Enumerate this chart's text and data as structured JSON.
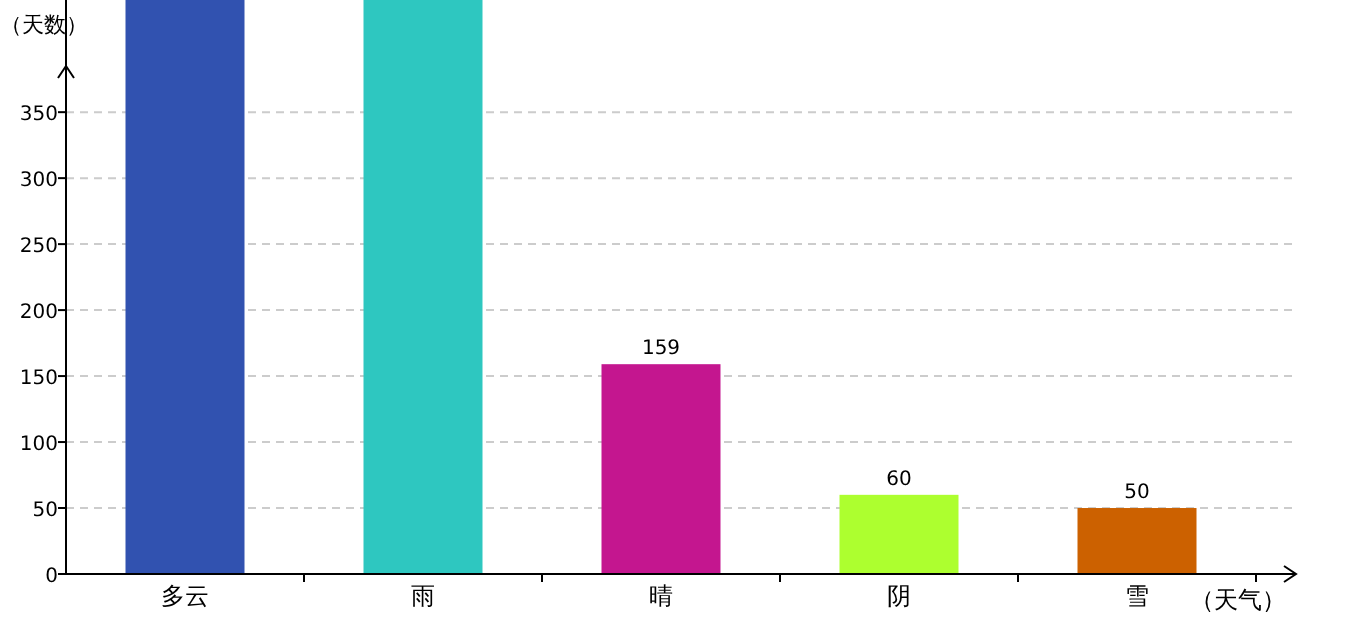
{
  "chart_data": {
    "type": "bar",
    "xlabel": "（天气）",
    "ylabel": "（天数）",
    "categories": [
      "多云",
      "雨",
      "晴",
      "阴",
      "雪"
    ],
    "values": [
      435,
      435,
      159,
      60,
      50
    ],
    "colors": [
      "#3152b0",
      "#2ec7c0",
      "#c4168f",
      "#adff2f",
      "#cc6100"
    ],
    "value_labels": [
      null,
      null,
      "159",
      "60",
      "50"
    ],
    "ylim": [
      0,
      435
    ],
    "yticks": [
      0,
      50,
      100,
      150,
      200,
      250,
      300,
      350
    ],
    "grid": "y"
  }
}
